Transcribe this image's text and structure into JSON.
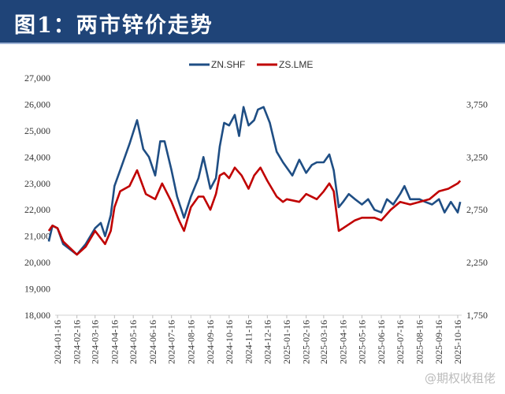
{
  "title": "图1：两市锌价走势",
  "watermark": "@期权收租佬",
  "chart_data": {
    "type": "line",
    "title": "",
    "legend_position": "top-center",
    "grid": false,
    "y_left": {
      "lim": [
        18000,
        27000
      ],
      "ticks": [
        "18,000",
        "19,000",
        "20,000",
        "21,000",
        "22,000",
        "23,000",
        "24,000",
        "25,000",
        "26,000",
        "27,000"
      ],
      "tick_values": [
        18000,
        19000,
        20000,
        21000,
        22000,
        23000,
        24000,
        25000,
        26000,
        27000
      ]
    },
    "y_right": {
      "lim": [
        1750,
        4000
      ],
      "ticks": [
        "1,750",
        "2,250",
        "2,750",
        "3,250",
        "3,750"
      ],
      "tick_values": [
        1750,
        2250,
        2750,
        3250,
        3750
      ]
    },
    "x_ticks": [
      "2024-01-16",
      "2024-02-16",
      "2024-03-16",
      "2024-04-16",
      "2024-05-16",
      "2024-06-16",
      "2024-07-16",
      "2024-08-16",
      "2024-09-16",
      "2024-10-16",
      "2024-11-16",
      "2024-12-16",
      "2025-01-16",
      "2025-02-16",
      "2025-03-16",
      "2025-04-16",
      "2025-05-16",
      "2025-06-16",
      "2025-07-16",
      "2025-08-16",
      "2025-09-16",
      "2025-10-16"
    ],
    "series": [
      {
        "name": "ZN.SHF",
        "axis": "left",
        "color": "#1f4e84",
        "points": [
          [
            "2024-01-02",
            20800
          ],
          [
            "2024-01-08",
            21400
          ],
          [
            "2024-01-16",
            21300
          ],
          [
            "2024-01-25",
            20700
          ],
          [
            "2024-02-16",
            20300
          ],
          [
            "2024-03-01",
            20700
          ],
          [
            "2024-03-16",
            21300
          ],
          [
            "2024-03-25",
            21500
          ],
          [
            "2024-04-01",
            21000
          ],
          [
            "2024-04-10",
            21800
          ],
          [
            "2024-04-16",
            22900
          ],
          [
            "2024-04-25",
            23500
          ],
          [
            "2024-05-10",
            24500
          ],
          [
            "2024-05-22",
            25400
          ],
          [
            "2024-06-01",
            24300
          ],
          [
            "2024-06-10",
            24000
          ],
          [
            "2024-06-20",
            23300
          ],
          [
            "2024-06-28",
            24600
          ],
          [
            "2024-07-05",
            24600
          ],
          [
            "2024-07-16",
            23500
          ],
          [
            "2024-07-25",
            22500
          ],
          [
            "2024-08-05",
            21700
          ],
          [
            "2024-08-16",
            22500
          ],
          [
            "2024-08-28",
            23200
          ],
          [
            "2024-09-05",
            24000
          ],
          [
            "2024-09-16",
            22800
          ],
          [
            "2024-09-25",
            23200
          ],
          [
            "2024-10-01",
            24400
          ],
          [
            "2024-10-08",
            25300
          ],
          [
            "2024-10-16",
            25200
          ],
          [
            "2024-10-25",
            25600
          ],
          [
            "2024-11-01",
            24800
          ],
          [
            "2024-11-08",
            25900
          ],
          [
            "2024-11-16",
            25200
          ],
          [
            "2024-11-25",
            25400
          ],
          [
            "2024-12-01",
            25800
          ],
          [
            "2024-12-10",
            25900
          ],
          [
            "2024-12-20",
            25300
          ],
          [
            "2024-12-31",
            24200
          ],
          [
            "2025-01-10",
            23800
          ],
          [
            "2025-01-16",
            23600
          ],
          [
            "2025-01-25",
            23300
          ],
          [
            "2025-02-05",
            23900
          ],
          [
            "2025-02-16",
            23400
          ],
          [
            "2025-02-25",
            23700
          ],
          [
            "2025-03-05",
            23800
          ],
          [
            "2025-03-16",
            23800
          ],
          [
            "2025-03-25",
            24100
          ],
          [
            "2025-04-01",
            23500
          ],
          [
            "2025-04-09",
            22100
          ],
          [
            "2025-04-16",
            22300
          ],
          [
            "2025-04-25",
            22600
          ],
          [
            "2025-05-05",
            22400
          ],
          [
            "2025-05-16",
            22200
          ],
          [
            "2025-05-26",
            22400
          ],
          [
            "2025-06-05",
            22000
          ],
          [
            "2025-06-16",
            21900
          ],
          [
            "2025-06-25",
            22400
          ],
          [
            "2025-07-05",
            22200
          ],
          [
            "2025-07-16",
            22600
          ],
          [
            "2025-07-23",
            22900
          ],
          [
            "2025-08-01",
            22400
          ],
          [
            "2025-08-16",
            22400
          ],
          [
            "2025-08-25",
            22300
          ],
          [
            "2025-09-05",
            22200
          ],
          [
            "2025-09-16",
            22400
          ],
          [
            "2025-09-25",
            21900
          ],
          [
            "2025-10-05",
            22300
          ],
          [
            "2025-10-16",
            21900
          ],
          [
            "2025-10-20",
            22300
          ]
        ]
      },
      {
        "name": "ZS.LME",
        "axis": "right",
        "color": "#c00000",
        "points": [
          [
            "2024-01-02",
            2550
          ],
          [
            "2024-01-08",
            2600
          ],
          [
            "2024-01-16",
            2575
          ],
          [
            "2024-01-25",
            2450
          ],
          [
            "2024-02-16",
            2325
          ],
          [
            "2024-03-01",
            2400
          ],
          [
            "2024-03-16",
            2550
          ],
          [
            "2024-04-01",
            2425
          ],
          [
            "2024-04-10",
            2550
          ],
          [
            "2024-04-16",
            2775
          ],
          [
            "2024-04-25",
            2925
          ],
          [
            "2024-05-10",
            2975
          ],
          [
            "2024-05-22",
            3125
          ],
          [
            "2024-06-05",
            2900
          ],
          [
            "2024-06-20",
            2850
          ],
          [
            "2024-07-01",
            3000
          ],
          [
            "2024-07-16",
            2825
          ],
          [
            "2024-07-28",
            2650
          ],
          [
            "2024-08-05",
            2550
          ],
          [
            "2024-08-16",
            2775
          ],
          [
            "2024-08-28",
            2875
          ],
          [
            "2024-09-05",
            2875
          ],
          [
            "2024-09-16",
            2750
          ],
          [
            "2024-09-25",
            2900
          ],
          [
            "2024-10-01",
            3075
          ],
          [
            "2024-10-08",
            3100
          ],
          [
            "2024-10-16",
            3050
          ],
          [
            "2024-10-25",
            3150
          ],
          [
            "2024-11-05",
            3075
          ],
          [
            "2024-11-16",
            2950
          ],
          [
            "2024-11-25",
            3075
          ],
          [
            "2024-12-05",
            3150
          ],
          [
            "2024-12-16",
            3025
          ],
          [
            "2024-12-31",
            2875
          ],
          [
            "2025-01-10",
            2825
          ],
          [
            "2025-01-16",
            2850
          ],
          [
            "2025-02-05",
            2825
          ],
          [
            "2025-02-16",
            2900
          ],
          [
            "2025-03-05",
            2850
          ],
          [
            "2025-03-16",
            2925
          ],
          [
            "2025-03-25",
            3000
          ],
          [
            "2025-04-01",
            2925
          ],
          [
            "2025-04-09",
            2550
          ],
          [
            "2025-04-16",
            2575
          ],
          [
            "2025-05-05",
            2650
          ],
          [
            "2025-05-16",
            2675
          ],
          [
            "2025-06-05",
            2675
          ],
          [
            "2025-06-16",
            2650
          ],
          [
            "2025-07-01",
            2750
          ],
          [
            "2025-07-16",
            2825
          ],
          [
            "2025-08-01",
            2800
          ],
          [
            "2025-08-16",
            2825
          ],
          [
            "2025-09-01",
            2850
          ],
          [
            "2025-09-16",
            2925
          ],
          [
            "2025-10-01",
            2950
          ],
          [
            "2025-10-16",
            3000
          ],
          [
            "2025-10-20",
            3025
          ]
        ]
      }
    ]
  }
}
